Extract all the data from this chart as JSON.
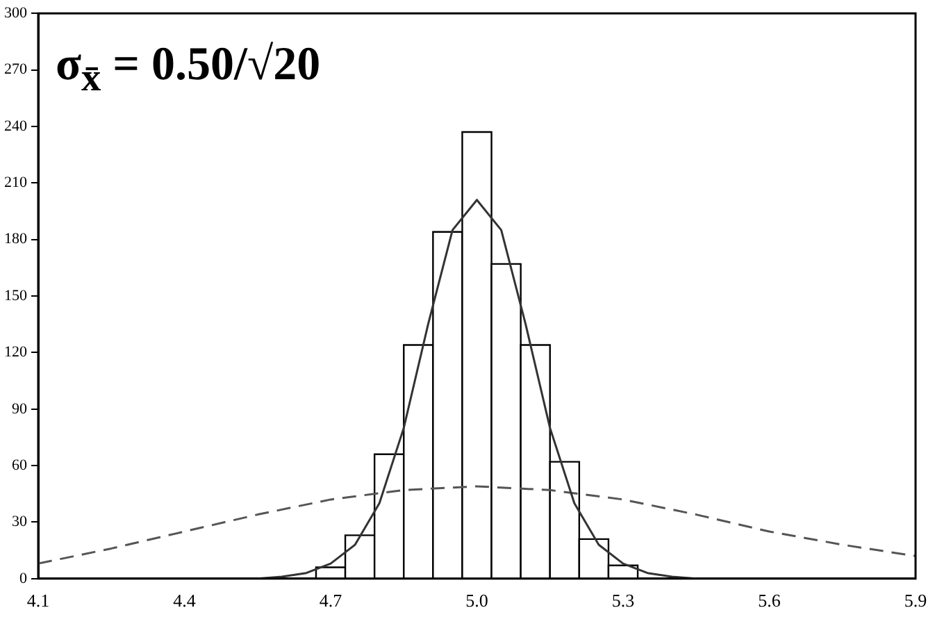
{
  "chart_data": {
    "type": "histogram",
    "bins": [
      4.67,
      4.73,
      4.79,
      4.85,
      4.91,
      4.97,
      5.03,
      5.09,
      5.15,
      5.21,
      5.27,
      5.33
    ],
    "values": [
      6,
      23,
      66,
      124,
      184,
      237,
      167,
      124,
      62,
      21,
      7
    ],
    "color": "#ffffff",
    "series": [
      {
        "type": "line",
        "x": [
          4.55,
          4.6,
          4.65,
          4.7,
          4.75,
          4.8,
          4.85,
          4.9,
          4.95,
          5.0,
          5.05,
          5.1,
          5.15,
          5.2,
          5.25,
          5.3,
          5.35,
          5.4,
          5.45
        ],
        "values": [
          0,
          1,
          3,
          8,
          18,
          40,
          80,
          135,
          185,
          201,
          185,
          135,
          80,
          40,
          18,
          8,
          3,
          1,
          0
        ],
        "color": "#333333",
        "line_style": "solid"
      },
      {
        "type": "line",
        "x": [
          4.1,
          4.25,
          4.4,
          4.55,
          4.7,
          4.85,
          5.0,
          5.15,
          5.3,
          5.45,
          5.6,
          5.75,
          5.9
        ],
        "values": [
          8,
          16,
          25,
          34,
          42,
          47,
          49,
          47,
          42,
          34,
          25,
          18,
          12
        ],
        "color": "#555555",
        "line_style": "dashed"
      }
    ],
    "xlim": [
      4.1,
      5.9
    ],
    "xticks": [
      4.1,
      4.4,
      4.7,
      {
        "value": 5,
        "label": "5.0"
      },
      5.3,
      5.6,
      5.9
    ],
    "ylim": [
      0,
      300
    ],
    "yticks": [
      0,
      30,
      60,
      90,
      120,
      150,
      180,
      210,
      240,
      270,
      300
    ],
    "marker": "none",
    "annotations": [
      "σ$_{x̄}$ = 0.50/√20"
    ]
  }
}
